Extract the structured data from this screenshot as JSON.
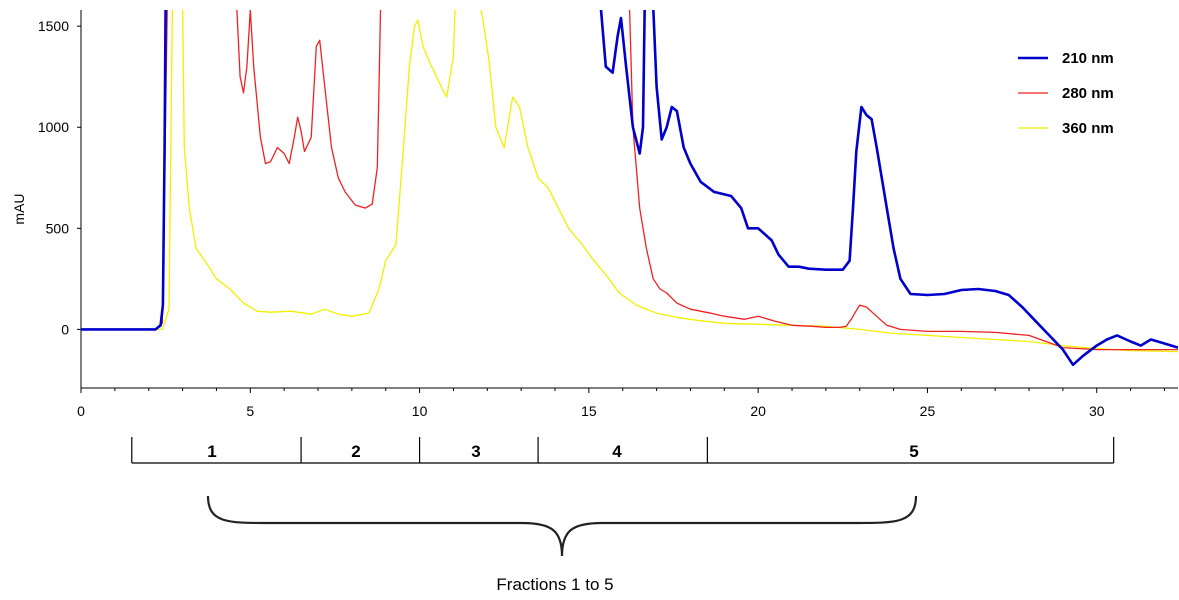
{
  "chart_data": {
    "type": "line",
    "title": "",
    "xlabel": "",
    "ylabel": "mAU",
    "xlim": [
      0,
      32.4
    ],
    "ylim": [
      -290,
      1580
    ],
    "x_ticks": [
      "0",
      "5",
      "10",
      "15",
      "20",
      "25",
      "30"
    ],
    "y_ticks": [
      "0",
      "500",
      "1000",
      "1500"
    ],
    "grid": false,
    "legend_position": "top-right",
    "series": [
      {
        "name": "210 nm",
        "color": "#0000cc",
        "stroke": "bold",
        "points": [
          [
            0,
            0
          ],
          [
            2.2,
            0
          ],
          [
            2.35,
            20
          ],
          [
            2.42,
            120
          ],
          [
            2.47,
            900
          ],
          [
            2.5,
            1600
          ],
          [
            15.35,
            1600
          ],
          [
            15.5,
            1300
          ],
          [
            15.7,
            1270
          ],
          [
            15.85,
            1450
          ],
          [
            15.95,
            1540
          ],
          [
            16.1,
            1300
          ],
          [
            16.3,
            1000
          ],
          [
            16.5,
            870
          ],
          [
            16.6,
            1000
          ],
          [
            16.65,
            1600
          ],
          [
            16.9,
            1600
          ],
          [
            17.0,
            1200
          ],
          [
            17.15,
            940
          ],
          [
            17.3,
            1000
          ],
          [
            17.45,
            1100
          ],
          [
            17.6,
            1080
          ],
          [
            17.8,
            900
          ],
          [
            18.0,
            820
          ],
          [
            18.3,
            730
          ],
          [
            18.7,
            680
          ],
          [
            19.2,
            660
          ],
          [
            19.5,
            600
          ],
          [
            19.7,
            500
          ],
          [
            20.0,
            500
          ],
          [
            20.4,
            440
          ],
          [
            20.6,
            370
          ],
          [
            20.9,
            310
          ],
          [
            21.2,
            310
          ],
          [
            21.5,
            300
          ],
          [
            22.0,
            295
          ],
          [
            22.5,
            295
          ],
          [
            22.7,
            340
          ],
          [
            22.8,
            600
          ],
          [
            22.9,
            880
          ],
          [
            23.05,
            1100
          ],
          [
            23.2,
            1060
          ],
          [
            23.35,
            1040
          ],
          [
            23.5,
            900
          ],
          [
            23.8,
            600
          ],
          [
            24.0,
            400
          ],
          [
            24.2,
            250
          ],
          [
            24.5,
            175
          ],
          [
            25.0,
            170
          ],
          [
            25.5,
            175
          ],
          [
            26.0,
            195
          ],
          [
            26.5,
            200
          ],
          [
            27.0,
            190
          ],
          [
            27.4,
            170
          ],
          [
            27.8,
            110
          ],
          [
            28.2,
            40
          ],
          [
            28.6,
            -30
          ],
          [
            29.0,
            -100
          ],
          [
            29.3,
            -175
          ],
          [
            29.6,
            -130
          ],
          [
            30.0,
            -80
          ],
          [
            30.3,
            -50
          ],
          [
            30.6,
            -30
          ],
          [
            31.0,
            -60
          ],
          [
            31.3,
            -80
          ],
          [
            31.6,
            -50
          ],
          [
            32.0,
            -70
          ],
          [
            32.4,
            -90
          ]
        ]
      },
      {
        "name": "280 nm",
        "color": "#ee2222",
        "stroke": "thin",
        "points": [
          [
            0,
            0
          ],
          [
            2.2,
            0
          ],
          [
            2.4,
            30
          ],
          [
            2.55,
            1600
          ],
          [
            4.6,
            1600
          ],
          [
            4.7,
            1250
          ],
          [
            4.8,
            1170
          ],
          [
            4.9,
            1300
          ],
          [
            5.0,
            1580
          ],
          [
            5.1,
            1300
          ],
          [
            5.3,
            950
          ],
          [
            5.45,
            820
          ],
          [
            5.6,
            830
          ],
          [
            5.8,
            900
          ],
          [
            6.0,
            870
          ],
          [
            6.15,
            820
          ],
          [
            6.3,
            950
          ],
          [
            6.4,
            1050
          ],
          [
            6.5,
            980
          ],
          [
            6.6,
            880
          ],
          [
            6.8,
            950
          ],
          [
            6.95,
            1400
          ],
          [
            7.05,
            1430
          ],
          [
            7.2,
            1200
          ],
          [
            7.4,
            900
          ],
          [
            7.6,
            750
          ],
          [
            7.8,
            680
          ],
          [
            8.1,
            615
          ],
          [
            8.4,
            600
          ],
          [
            8.6,
            620
          ],
          [
            8.75,
            800
          ],
          [
            8.8,
            1200
          ],
          [
            8.85,
            1600
          ],
          [
            16.2,
            1600
          ],
          [
            16.3,
            1000
          ],
          [
            16.4,
            800
          ],
          [
            16.5,
            600
          ],
          [
            16.7,
            400
          ],
          [
            16.9,
            250
          ],
          [
            17.1,
            200
          ],
          [
            17.3,
            180
          ],
          [
            17.6,
            130
          ],
          [
            18.0,
            100
          ],
          [
            18.6,
            80
          ],
          [
            19.0,
            65
          ],
          [
            19.6,
            50
          ],
          [
            20.0,
            65
          ],
          [
            20.5,
            40
          ],
          [
            21.0,
            20
          ],
          [
            21.6,
            15
          ],
          [
            22.0,
            10
          ],
          [
            22.4,
            10
          ],
          [
            22.6,
            15
          ],
          [
            22.75,
            50
          ],
          [
            22.85,
            80
          ],
          [
            23.0,
            120
          ],
          [
            23.2,
            110
          ],
          [
            23.4,
            80
          ],
          [
            23.6,
            50
          ],
          [
            23.8,
            20
          ],
          [
            24.2,
            0
          ],
          [
            25.0,
            -10
          ],
          [
            26.0,
            -10
          ],
          [
            27.0,
            -15
          ],
          [
            28.0,
            -30
          ],
          [
            28.5,
            -60
          ],
          [
            29.0,
            -90
          ],
          [
            30.0,
            -100
          ],
          [
            31.0,
            -100
          ],
          [
            32.4,
            -100
          ]
        ]
      },
      {
        "name": "360 nm",
        "color": "#f0f000",
        "stroke": "thin",
        "points": [
          [
            0,
            0
          ],
          [
            2.4,
            0
          ],
          [
            2.6,
            100
          ],
          [
            2.7,
            1600
          ],
          [
            3.0,
            1600
          ],
          [
            3.05,
            900
          ],
          [
            3.2,
            600
          ],
          [
            3.4,
            400
          ],
          [
            3.7,
            330
          ],
          [
            4.0,
            250
          ],
          [
            4.4,
            200
          ],
          [
            4.8,
            130
          ],
          [
            5.2,
            90
          ],
          [
            5.6,
            85
          ],
          [
            6.2,
            90
          ],
          [
            6.8,
            75
          ],
          [
            7.2,
            100
          ],
          [
            7.6,
            75
          ],
          [
            8.0,
            65
          ],
          [
            8.5,
            80
          ],
          [
            8.8,
            200
          ],
          [
            9.0,
            340
          ],
          [
            9.3,
            420
          ],
          [
            9.5,
            850
          ],
          [
            9.7,
            1300
          ],
          [
            9.85,
            1500
          ],
          [
            9.95,
            1530
          ],
          [
            10.1,
            1400
          ],
          [
            10.3,
            1320
          ],
          [
            10.5,
            1250
          ],
          [
            10.7,
            1180
          ],
          [
            10.8,
            1150
          ],
          [
            11.0,
            1350
          ],
          [
            11.05,
            1600
          ],
          [
            11.8,
            1600
          ],
          [
            11.9,
            1500
          ],
          [
            12.05,
            1330
          ],
          [
            12.25,
            1000
          ],
          [
            12.5,
            900
          ],
          [
            12.75,
            1150
          ],
          [
            12.95,
            1100
          ],
          [
            13.2,
            900
          ],
          [
            13.5,
            750
          ],
          [
            13.8,
            700
          ],
          [
            14.1,
            600
          ],
          [
            14.4,
            500
          ],
          [
            14.8,
            420
          ],
          [
            15.1,
            350
          ],
          [
            15.5,
            270
          ],
          [
            15.9,
            180
          ],
          [
            16.4,
            120
          ],
          [
            17.0,
            80
          ],
          [
            17.6,
            60
          ],
          [
            18.2,
            45
          ],
          [
            19.0,
            30
          ],
          [
            20.0,
            25
          ],
          [
            21.0,
            20
          ],
          [
            22.0,
            15
          ],
          [
            23.0,
            0
          ],
          [
            24.0,
            -20
          ],
          [
            25.0,
            -30
          ],
          [
            26.0,
            -40
          ],
          [
            27.0,
            -50
          ],
          [
            28.0,
            -60
          ],
          [
            29.0,
            -80
          ],
          [
            30.0,
            -95
          ],
          [
            31.0,
            -105
          ],
          [
            32.4,
            -110
          ]
        ]
      }
    ],
    "fractions": [
      {
        "label": "1",
        "start": 1.5,
        "end": 6.5
      },
      {
        "label": "2",
        "start": 6.5,
        "end": 10.0
      },
      {
        "label": "3",
        "start": 10.0,
        "end": 13.5
      },
      {
        "label": "4",
        "start": 13.5,
        "end": 18.5
      },
      {
        "label": "5",
        "start": 18.5,
        "end": 30.5
      }
    ],
    "brace_label": "Fractions 1 to 5"
  }
}
